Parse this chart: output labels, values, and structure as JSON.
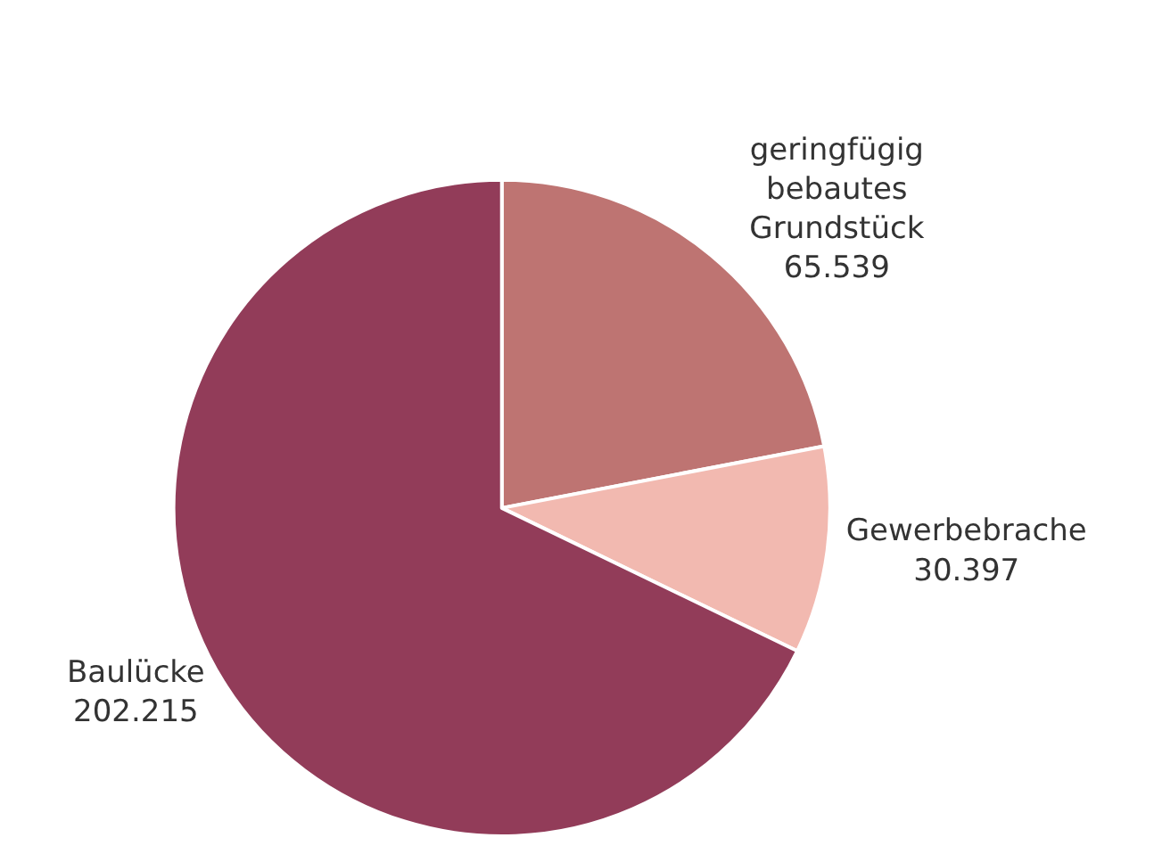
{
  "chart_data": {
    "type": "pie",
    "categories": [
      "geringfügig bebautes Grundstück",
      "Gewerbebrache",
      "Baulücke"
    ],
    "values": [
      65539,
      30397,
      202215
    ],
    "value_labels": [
      "65.539",
      "30.397",
      "202.215"
    ],
    "colors": [
      "#be7472",
      "#f2b9b0",
      "#923c59"
    ],
    "legend": false
  }
}
